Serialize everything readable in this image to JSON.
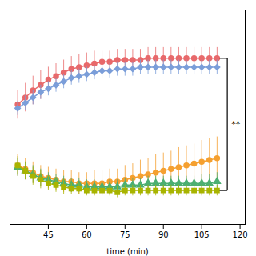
{
  "chart_data": {
    "type": "line",
    "xlabel": "time (min)",
    "x": [
      33,
      36,
      39,
      42,
      45,
      48,
      51,
      54,
      57,
      60,
      63,
      66,
      69,
      72,
      75,
      78,
      81,
      84,
      87,
      90,
      93,
      96,
      99,
      102,
      105,
      108,
      111
    ],
    "series": [
      {
        "color": "#E8696B",
        "marker": "circle",
        "values": [
          0.62,
          0.66,
          0.7,
          0.73,
          0.76,
          0.78,
          0.8,
          0.82,
          0.83,
          0.84,
          0.85,
          0.86,
          0.86,
          0.87,
          0.87,
          0.87,
          0.87,
          0.88,
          0.88,
          0.88,
          0.88,
          0.88,
          0.88,
          0.88,
          0.88,
          0.88,
          0.88
        ],
        "errors": [
          0.08,
          0.08,
          0.08,
          0.08,
          0.07,
          0.07,
          0.07,
          0.07,
          0.07,
          0.07,
          0.07,
          0.06,
          0.06,
          0.06,
          0.06,
          0.06,
          0.06,
          0.06,
          0.06,
          0.06,
          0.06,
          0.06,
          0.06,
          0.06,
          0.06,
          0.06,
          0.06
        ]
      },
      {
        "color": "#7B9ED9",
        "marker": "diamond",
        "values": [
          0.6,
          0.63,
          0.66,
          0.69,
          0.71,
          0.73,
          0.75,
          0.77,
          0.78,
          0.79,
          0.8,
          0.81,
          0.81,
          0.82,
          0.82,
          0.82,
          0.83,
          0.83,
          0.83,
          0.83,
          0.83,
          0.83,
          0.83,
          0.83,
          0.83,
          0.83,
          0.83
        ],
        "errors": [
          0.04,
          0.04,
          0.04,
          0.04,
          0.04,
          0.04,
          0.04,
          0.04,
          0.04,
          0.04,
          0.04,
          0.04,
          0.04,
          0.04,
          0.04,
          0.04,
          0.04,
          0.04,
          0.04,
          0.04,
          0.04,
          0.04,
          0.04,
          0.04,
          0.04,
          0.04,
          0.04
        ]
      },
      {
        "color": "#F5A030",
        "marker": "circle",
        "values": [
          0.28,
          0.26,
          0.24,
          0.22,
          0.21,
          0.2,
          0.19,
          0.19,
          0.18,
          0.18,
          0.18,
          0.18,
          0.19,
          0.19,
          0.2,
          0.21,
          0.22,
          0.23,
          0.24,
          0.25,
          0.26,
          0.27,
          0.28,
          0.29,
          0.3,
          0.31,
          0.32
        ],
        "errors": [
          0.06,
          0.06,
          0.06,
          0.06,
          0.06,
          0.06,
          0.06,
          0.06,
          0.06,
          0.06,
          0.07,
          0.07,
          0.07,
          0.07,
          0.08,
          0.08,
          0.09,
          0.09,
          0.1,
          0.1,
          0.1,
          0.11,
          0.11,
          0.11,
          0.12,
          0.12,
          0.12
        ]
      },
      {
        "color": "#4CAF72",
        "marker": "triangle",
        "values": [
          0.27,
          0.25,
          0.23,
          0.21,
          0.2,
          0.19,
          0.18,
          0.17,
          0.17,
          0.16,
          0.16,
          0.16,
          0.16,
          0.16,
          0.17,
          0.17,
          0.17,
          0.18,
          0.18,
          0.18,
          0.18,
          0.18,
          0.18,
          0.18,
          0.18,
          0.18,
          0.19
        ],
        "errors": [
          0.05,
          0.05,
          0.05,
          0.05,
          0.04,
          0.04,
          0.04,
          0.04,
          0.04,
          0.04,
          0.04,
          0.04,
          0.04,
          0.04,
          0.04,
          0.04,
          0.04,
          0.04,
          0.04,
          0.04,
          0.04,
          0.04,
          0.04,
          0.04,
          0.05,
          0.05,
          0.05
        ]
      },
      {
        "color": "#A8B400",
        "marker": "square",
        "values": [
          0.28,
          0.25,
          0.22,
          0.2,
          0.18,
          0.17,
          0.16,
          0.15,
          0.15,
          0.14,
          0.14,
          0.14,
          0.14,
          0.13,
          0.14,
          0.14,
          0.14,
          0.14,
          0.14,
          0.14,
          0.14,
          0.14,
          0.14,
          0.14,
          0.14,
          0.14,
          0.14
        ],
        "errors": [
          0.05,
          0.05,
          0.05,
          0.05,
          0.04,
          0.04,
          0.04,
          0.03,
          0.03,
          0.03,
          0.03,
          0.03,
          0.03,
          0.03,
          0.03,
          0.03,
          0.03,
          0.03,
          0.03,
          0.03,
          0.03,
          0.03,
          0.03,
          0.03,
          0.03,
          0.03,
          0.03
        ]
      }
    ],
    "xlim": [
      30,
      122
    ],
    "xticks": [
      45,
      60,
      75,
      90,
      105,
      120
    ],
    "ylim": [
      -0.05,
      1.15
    ],
    "tick_labels": "x",
    "annotations": [
      {
        "text": "**",
        "bracket_x": [
          112,
          115
        ],
        "bracket_y": [
          0.14,
          0.88
        ]
      }
    ]
  }
}
